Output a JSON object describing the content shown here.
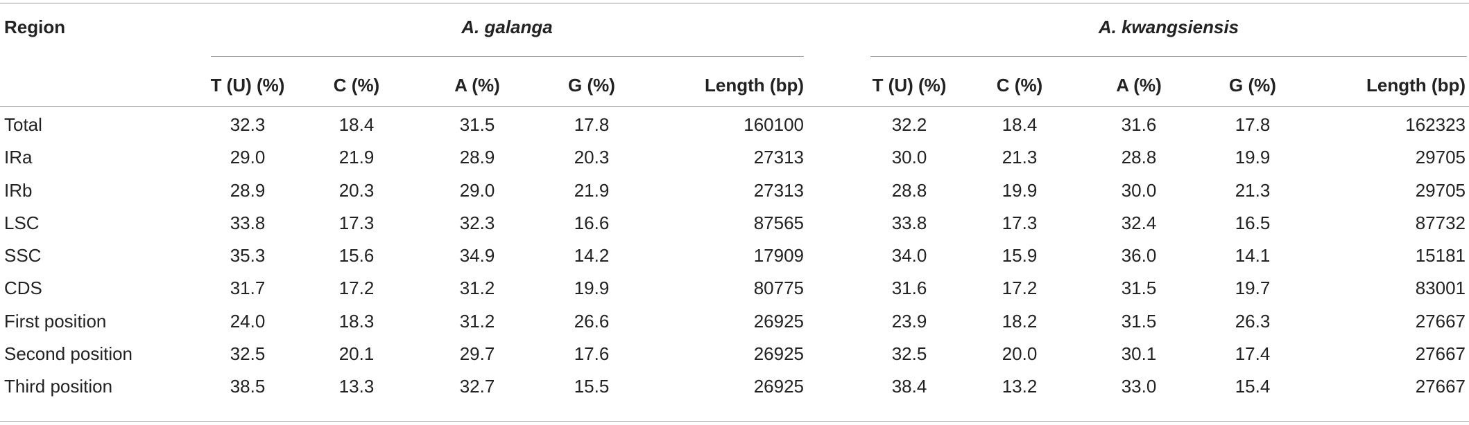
{
  "table": {
    "region_header": "Region",
    "groups": [
      "A. galanga",
      "A. kwangsiensis"
    ],
    "columns": [
      "T (U) (%)",
      "C (%)",
      "A (%)",
      "G (%)",
      "Length (bp)"
    ],
    "rows": [
      {
        "region": "Total",
        "values": [
          "32.3",
          "18.4",
          "31.5",
          "17.8",
          "160100",
          "32.2",
          "18.4",
          "31.6",
          "17.8",
          "162323"
        ]
      },
      {
        "region": "IRa",
        "values": [
          "29.0",
          "21.9",
          "28.9",
          "20.3",
          "27313",
          "30.0",
          "21.3",
          "28.8",
          "19.9",
          "29705"
        ]
      },
      {
        "region": "IRb",
        "values": [
          "28.9",
          "20.3",
          "29.0",
          "21.9",
          "27313",
          "28.8",
          "19.9",
          "30.0",
          "21.3",
          "29705"
        ]
      },
      {
        "region": "LSC",
        "values": [
          "33.8",
          "17.3",
          "32.3",
          "16.6",
          "87565",
          "33.8",
          "17.3",
          "32.4",
          "16.5",
          "87732"
        ]
      },
      {
        "region": "SSC",
        "values": [
          "35.3",
          "15.6",
          "34.9",
          "14.2",
          "17909",
          "34.0",
          "15.9",
          "36.0",
          "14.1",
          "15181"
        ]
      },
      {
        "region": "CDS",
        "values": [
          "31.7",
          "17.2",
          "31.2",
          "19.9",
          "80775",
          "31.6",
          "17.2",
          "31.5",
          "19.7",
          "83001"
        ]
      },
      {
        "region": "First position",
        "values": [
          "24.0",
          "18.3",
          "31.2",
          "26.6",
          "26925",
          "23.9",
          "18.2",
          "31.5",
          "26.3",
          "27667"
        ]
      },
      {
        "region": "Second position",
        "values": [
          "32.5",
          "20.1",
          "29.7",
          "17.6",
          "26925",
          "32.5",
          "20.0",
          "30.1",
          "17.4",
          "27667"
        ]
      },
      {
        "region": "Third position",
        "values": [
          "38.5",
          "13.3",
          "32.7",
          "15.5",
          "26925",
          "38.4",
          "13.2",
          "33.0",
          "15.4",
          "27667"
        ]
      }
    ]
  }
}
